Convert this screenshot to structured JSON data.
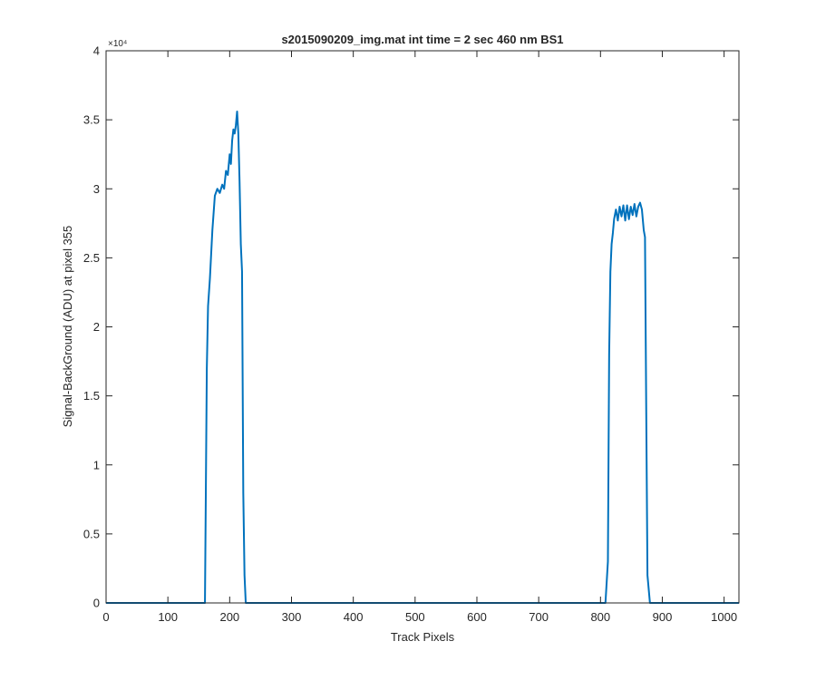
{
  "chart_data": {
    "type": "line",
    "title": "s2015090209_img.mat int time = 2 sec  460 nm BS1",
    "xlabel": "Track Pixels",
    "ylabel": "Signal-BackGround (ADU) at pixel 355",
    "xlim": [
      0,
      1024
    ],
    "ylim": [
      0,
      40000
    ],
    "x_ticks": [
      0,
      100,
      200,
      300,
      400,
      500,
      600,
      700,
      800,
      900,
      1000
    ],
    "x_tick_labels": [
      "0",
      "100",
      "200",
      "300",
      "400",
      "500",
      "600",
      "700",
      "800",
      "900",
      "1000"
    ],
    "y_ticks": [
      0,
      5000,
      10000,
      15000,
      20000,
      25000,
      30000,
      35000,
      40000
    ],
    "y_tick_labels": [
      "0",
      "0.5",
      "1",
      "1.5",
      "2",
      "2.5",
      "3",
      "3.5",
      "4"
    ],
    "y_exponent_label": "×10⁴",
    "grid": false,
    "line_color": "#0072BD",
    "series": [
      {
        "x": [
          0,
          160,
          163,
          165,
          168,
          172,
          176,
          180,
          184,
          188,
          191,
          194,
          197,
          200,
          202,
          204,
          206,
          208,
          210,
          212,
          214,
          216,
          218,
          220,
          222,
          224,
          226,
          228,
          232,
          400,
          600,
          808,
          812,
          814,
          816,
          818,
          820,
          822,
          825,
          828,
          831,
          834,
          837,
          840,
          843,
          846,
          849,
          852,
          855,
          858,
          861,
          864,
          867,
          870,
          872,
          874,
          876,
          880,
          1024
        ],
        "y": [
          0,
          0,
          17000,
          21500,
          23500,
          27000,
          29500,
          30000,
          29700,
          30300,
          30000,
          31300,
          31000,
          32500,
          31800,
          33500,
          34300,
          34000,
          34600,
          35600,
          34000,
          30500,
          26000,
          24000,
          8000,
          2000,
          0,
          0,
          0,
          0,
          0,
          0,
          3000,
          18000,
          24000,
          26000,
          26800,
          27800,
          28500,
          27700,
          28700,
          28000,
          28800,
          27700,
          28800,
          27800,
          28700,
          28100,
          28900,
          28000,
          28700,
          29000,
          28500,
          27000,
          26500,
          14000,
          2000,
          0,
          0
        ]
      }
    ]
  }
}
